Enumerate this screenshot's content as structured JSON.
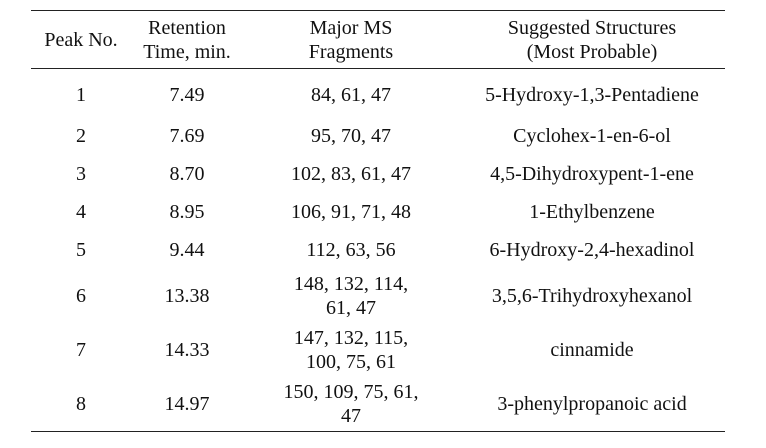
{
  "table": {
    "headers": [
      {
        "lines": [
          "Peak No."
        ]
      },
      {
        "lines": [
          "Retention",
          "Time, min."
        ]
      },
      {
        "lines": [
          "Major MS",
          "Fragments"
        ]
      },
      {
        "lines": [
          "Suggested Structures",
          "(Most Probable)"
        ]
      }
    ],
    "rows": [
      {
        "peak": "1",
        "time": "7.49",
        "fragments": [
          "84, 61, 47"
        ],
        "structure": "5-Hydroxy-1,3-Pentadiene"
      },
      {
        "peak": "2",
        "time": "7.69",
        "fragments": [
          "95, 70, 47"
        ],
        "structure": "Cyclohex-1-en-6-ol"
      },
      {
        "peak": "3",
        "time": "8.70",
        "fragments": [
          "102, 83, 61, 47"
        ],
        "structure": "4,5-Dihydroxypent-1-ene"
      },
      {
        "peak": "4",
        "time": "8.95",
        "fragments": [
          "106, 91, 71, 48"
        ],
        "structure": "1-Ethylbenzene"
      },
      {
        "peak": "5",
        "time": "9.44",
        "fragments": [
          "112, 63, 56"
        ],
        "structure": "6-Hydroxy-2,4-hexadinol"
      },
      {
        "peak": "6",
        "time": "13.38",
        "fragments": [
          "148, 132, 114,",
          "61, 47"
        ],
        "structure": "3,5,6-Trihydroxyhexanol"
      },
      {
        "peak": "7",
        "time": "14.33",
        "fragments": [
          "147, 132, 115,",
          "100, 75, 61"
        ],
        "structure": "cinnamide"
      },
      {
        "peak": "8",
        "time": "14.97",
        "fragments": [
          "150, 109, 75, 61,",
          "47"
        ],
        "structure": "3-phenylpropanoic acid"
      }
    ]
  }
}
